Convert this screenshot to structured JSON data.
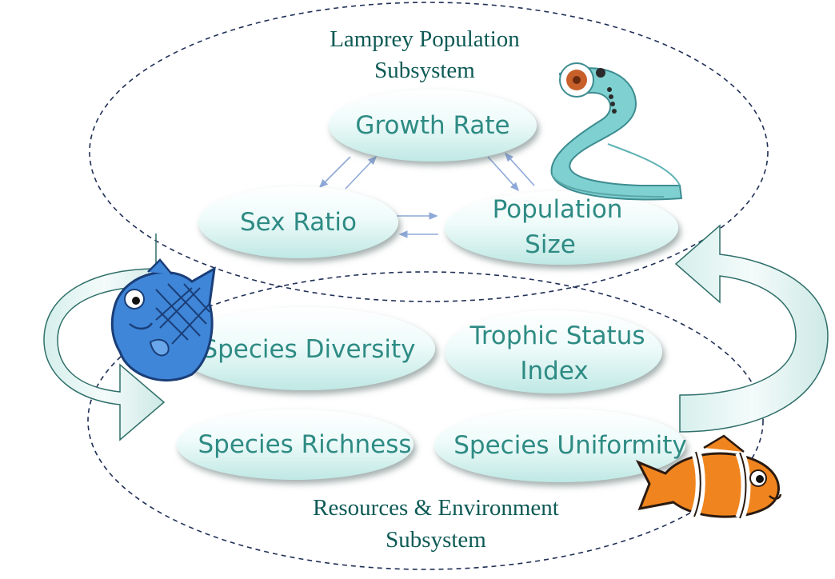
{
  "subsystems": {
    "lamprey": {
      "title_line1": "Lamprey Population",
      "title_line2": "Subsystem"
    },
    "resources": {
      "title_line1": "Resources & Environment",
      "title_line2": "Subsystem"
    }
  },
  "nodes": {
    "growth_rate": "Growth Rate",
    "sex_ratio": "Sex Ratio",
    "population_size_line1": "Population",
    "population_size_line2": "Size",
    "species_diversity": "Species Diversity",
    "trophic_status_line1": "Trophic Status",
    "trophic_status_line2": "Index",
    "species_richness": "Species Richness",
    "species_uniformity": "Species Uniformity"
  },
  "illustrations": [
    "lamprey-eel",
    "blue-fish",
    "clownfish"
  ],
  "colors": {
    "node_text": "#2e8b84",
    "subsystem_title": "#0e5a55",
    "dashed_border": "#1f2f55",
    "feedback_arrow_fill": "#e6f6f4",
    "feedback_arrow_stroke": "#2f6f6a",
    "small_arrow": "#8ea8d8"
  }
}
